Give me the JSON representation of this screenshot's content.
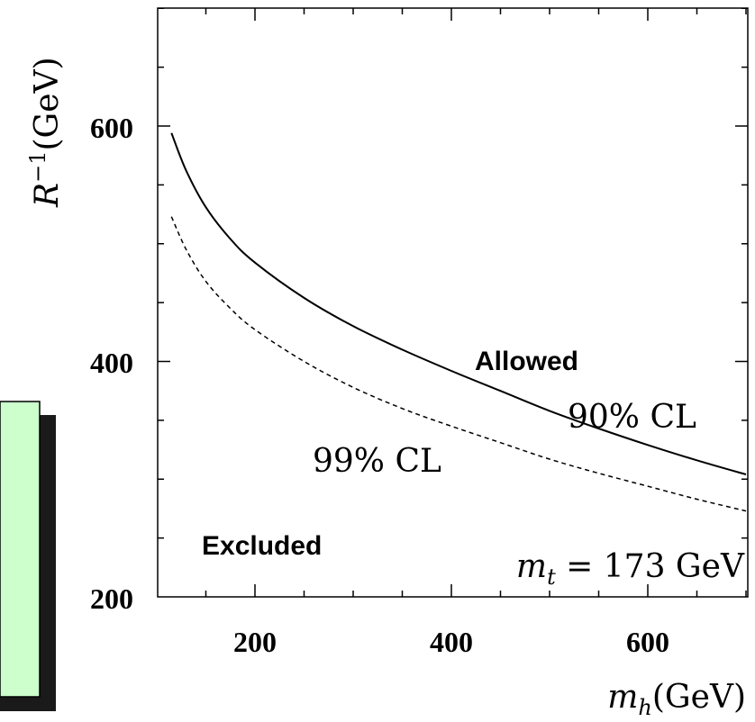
{
  "chart_data": {
    "type": "line",
    "xlabel_var": "m",
    "xlabel_sub": "h",
    "xlabel_unit": "(GeV)",
    "ylabel_var": "R",
    "ylabel_sup": "−1",
    "ylabel_unit": "(GeV)",
    "xlim": [
      100,
      700
    ],
    "ylim": [
      200,
      700
    ],
    "x_ticks": [
      {
        "value": 200,
        "label": "200"
      },
      {
        "value": 400,
        "label": "400"
      },
      {
        "value": 600,
        "label": "600"
      }
    ],
    "y_ticks": [
      {
        "value": 200,
        "label": "200"
      },
      {
        "value": 400,
        "label": "400"
      },
      {
        "value": 600,
        "label": "600"
      }
    ],
    "series": [
      {
        "name": "90% CL",
        "style": "solid",
        "x": [
          115,
          130,
          150,
          175,
          200,
          250,
          300,
          350,
          400,
          450,
          500,
          550,
          600,
          650,
          700
        ],
        "y": [
          594,
          562,
          531,
          504,
          484,
          454,
          430,
          410,
          392,
          375,
          358,
          343,
          329,
          316,
          304
        ]
      },
      {
        "name": "99% CL",
        "style": "dashed",
        "x": [
          115,
          130,
          150,
          175,
          200,
          250,
          300,
          350,
          400,
          450,
          500,
          550,
          600,
          650,
          700
        ],
        "y": [
          523,
          495,
          468,
          445,
          427,
          400,
          378,
          360,
          345,
          331,
          317,
          305,
          294,
          283,
          273
        ]
      }
    ],
    "annotations": {
      "allowed": "Allowed",
      "excluded": "Excluded",
      "cl90": "90% CL",
      "cl99": "99% CL",
      "mt_var": "m",
      "mt_sub": "t",
      "mt_value": " = 173 GeV"
    }
  },
  "colors": {
    "line": "#000000",
    "legend_box_fill": "#ccffcc",
    "legend_box_shadow": "#1a1a1a"
  }
}
